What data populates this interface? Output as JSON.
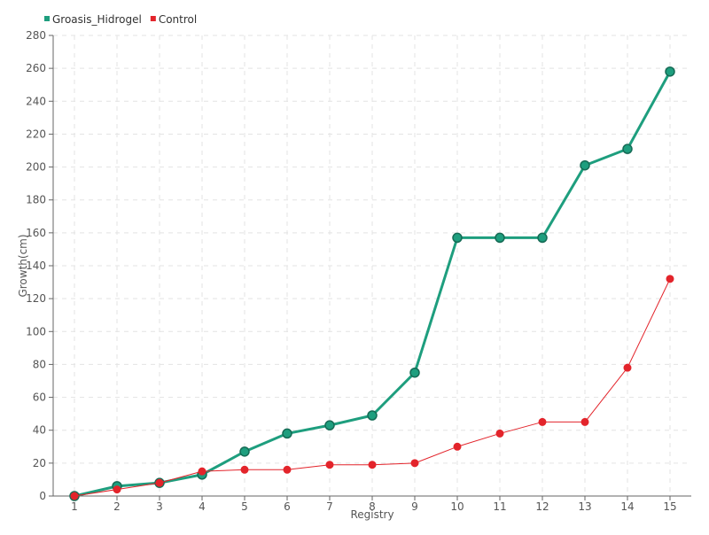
{
  "chart_data": {
    "type": "line",
    "xlabel": "Registry",
    "ylabel": "Growth(cm)",
    "categories": [
      "1",
      "2",
      "3",
      "4",
      "5",
      "6",
      "7",
      "8",
      "9",
      "10",
      "11",
      "12",
      "13",
      "14",
      "15"
    ],
    "ylim": [
      0,
      280
    ],
    "yticks": [
      0,
      20,
      40,
      60,
      80,
      100,
      120,
      140,
      160,
      180,
      200,
      220,
      240,
      260,
      280
    ],
    "grid": true,
    "legend_position": "top-left",
    "series": [
      {
        "name": "Groasis_Hidrogel",
        "color": "#1e9e7e",
        "values": [
          0,
          6,
          8,
          13,
          27,
          38,
          43,
          49,
          75,
          157,
          157,
          157,
          201,
          211,
          258
        ]
      },
      {
        "name": "Control",
        "color": "#e3242b",
        "values": [
          0,
          4,
          8,
          15,
          16,
          16,
          19,
          19,
          20,
          30,
          38,
          45,
          45,
          78,
          132
        ]
      }
    ]
  }
}
